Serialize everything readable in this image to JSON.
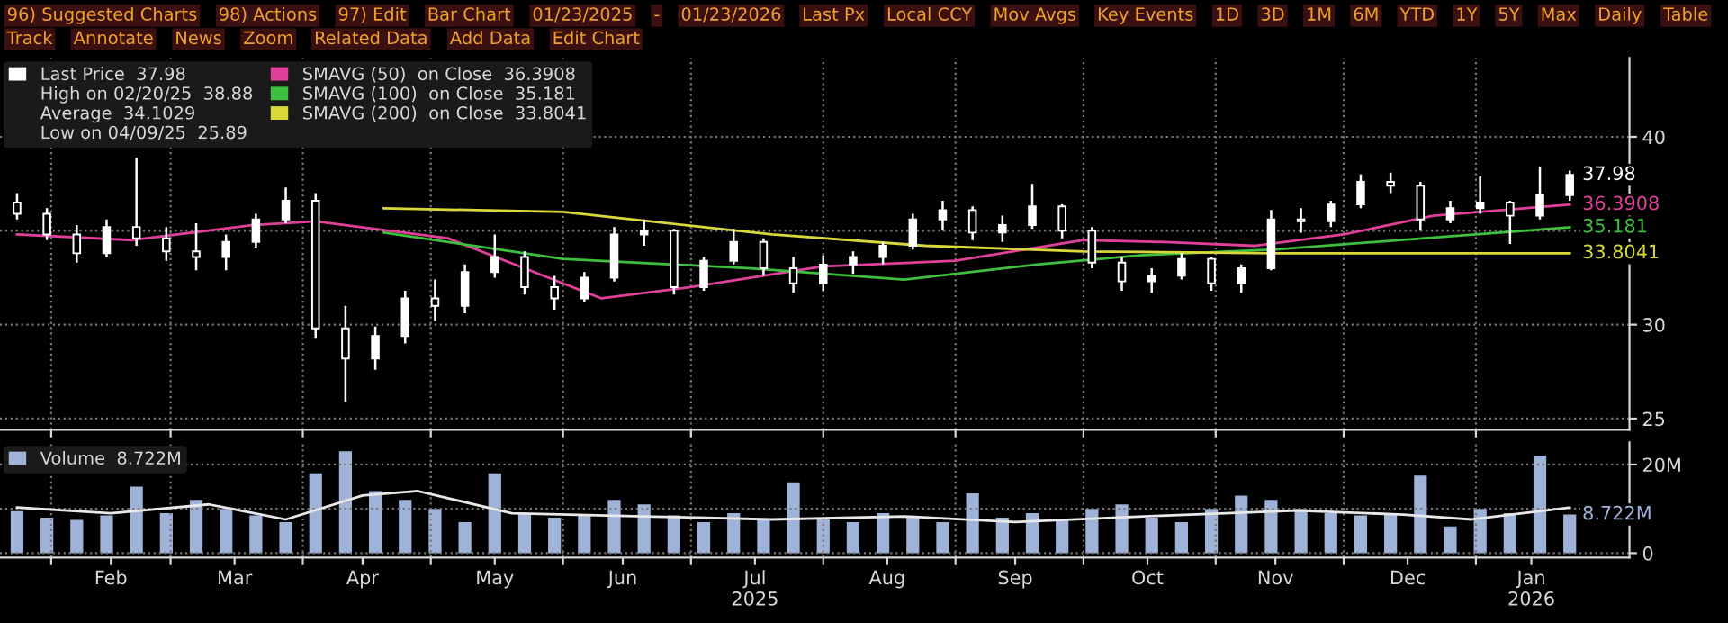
{
  "chart_data": [
    {
      "type": "other",
      "annotations": [
        "96) Suggested Charts",
        "98) Actions",
        "97) Edit",
        "Bar Chart",
        "01/23/2025",
        "-",
        "01/23/2026",
        "Last Px",
        "Local CCY",
        "Mov Avgs",
        "Key Events",
        "1D",
        "3D",
        "1M",
        "6M",
        "YTD",
        "1Y",
        "5Y",
        "Max",
        "Daily",
        "Table",
        "Track",
        "Annotate",
        "News",
        "Zoom",
        "Related Data",
        "Add Data",
        "Edit Chart"
      ]
    },
    {
      "type": "candlestick",
      "x": [
        "2025-01-24",
        "2025-01-31",
        "2025-02-07",
        "2025-02-14",
        "2025-02-21",
        "2025-02-28",
        "2025-03-07",
        "2025-03-14",
        "2025-03-21",
        "2025-03-28",
        "2025-04-04",
        "2025-04-11",
        "2025-04-18",
        "2025-04-25",
        "2025-05-02",
        "2025-05-09",
        "2025-05-16",
        "2025-05-23",
        "2025-05-30",
        "2025-06-06",
        "2025-06-13",
        "2025-06-20",
        "2025-06-27",
        "2025-07-04",
        "2025-07-11",
        "2025-07-18",
        "2025-07-25",
        "2025-08-01",
        "2025-08-08",
        "2025-08-15",
        "2025-08-22",
        "2025-08-29",
        "2025-09-05",
        "2025-09-12",
        "2025-09-19",
        "2025-09-26",
        "2025-10-03",
        "2025-10-10",
        "2025-10-17",
        "2025-10-24",
        "2025-10-31",
        "2025-11-07",
        "2025-11-14",
        "2025-11-21",
        "2025-11-28",
        "2025-12-05",
        "2025-12-12",
        "2025-12-19",
        "2025-12-26",
        "2026-01-02",
        "2026-01-09",
        "2026-01-16",
        "2026-01-23"
      ],
      "series": [
        {
          "type": "candlestick",
          "name": "Last Price  37.98",
          "color": "#ffffff",
          "ohlc": [
            [
              36.5,
              37.0,
              35.6,
              35.9
            ],
            [
              35.9,
              36.2,
              34.5,
              34.8
            ],
            [
              34.8,
              35.3,
              33.3,
              33.8
            ],
            [
              33.8,
              35.6,
              33.6,
              35.2
            ],
            [
              35.2,
              38.88,
              34.2,
              34.6
            ],
            [
              34.6,
              35.2,
              33.4,
              33.9
            ],
            [
              33.9,
              35.4,
              32.9,
              33.6
            ],
            [
              33.6,
              34.8,
              32.9,
              34.4
            ],
            [
              34.4,
              35.9,
              34.1,
              35.6
            ],
            [
              35.6,
              37.3,
              35.4,
              36.6
            ],
            [
              36.6,
              37.0,
              29.3,
              29.8
            ],
            [
              29.8,
              31.0,
              25.89,
              28.2
            ],
            [
              28.2,
              29.9,
              27.6,
              29.4
            ],
            [
              29.4,
              31.8,
              29.0,
              31.4
            ],
            [
              31.4,
              32.4,
              30.2,
              31.0
            ],
            [
              31.0,
              33.2,
              30.6,
              32.8
            ],
            [
              32.8,
              34.8,
              32.5,
              33.6
            ],
            [
              33.6,
              33.9,
              31.6,
              32.0
            ],
            [
              32.0,
              32.6,
              30.8,
              31.4
            ],
            [
              31.4,
              32.8,
              31.2,
              32.5
            ],
            [
              32.5,
              35.2,
              32.3,
              34.8
            ],
            [
              34.8,
              35.6,
              34.2,
              35.0
            ],
            [
              35.0,
              35.1,
              31.6,
              32.0
            ],
            [
              32.0,
              33.6,
              31.8,
              33.4
            ],
            [
              33.4,
              35.1,
              33.2,
              34.4
            ],
            [
              34.4,
              34.6,
              32.6,
              33.0
            ],
            [
              33.0,
              33.6,
              31.7,
              32.2
            ],
            [
              32.2,
              33.7,
              31.8,
              33.2
            ],
            [
              33.2,
              33.9,
              32.7,
              33.6
            ],
            [
              33.6,
              34.4,
              33.2,
              34.2
            ],
            [
              34.2,
              35.9,
              34.0,
              35.6
            ],
            [
              35.6,
              36.6,
              35.0,
              36.1
            ],
            [
              36.1,
              36.3,
              34.5,
              34.9
            ],
            [
              34.9,
              35.8,
              34.4,
              35.3
            ],
            [
              35.3,
              37.5,
              35.1,
              36.3
            ],
            [
              36.3,
              36.4,
              34.6,
              35.0
            ],
            [
              35.0,
              35.2,
              33.0,
              33.3
            ],
            [
              33.3,
              33.6,
              31.8,
              32.3
            ],
            [
              32.3,
              33.0,
              31.7,
              32.6
            ],
            [
              32.6,
              33.8,
              32.4,
              33.5
            ],
            [
              33.5,
              33.6,
              31.8,
              32.2
            ],
            [
              32.2,
              33.2,
              31.7,
              33.0
            ],
            [
              33.0,
              36.1,
              32.9,
              35.6
            ],
            [
              35.6,
              36.2,
              34.9,
              35.5
            ],
            [
              35.5,
              36.6,
              35.2,
              36.4
            ],
            [
              36.4,
              38.0,
              36.2,
              37.6
            ],
            [
              37.6,
              38.1,
              37.0,
              37.4
            ],
            [
              37.4,
              37.6,
              35.0,
              35.6
            ],
            [
              35.6,
              36.6,
              35.4,
              36.2
            ],
            [
              36.2,
              37.9,
              35.9,
              36.5
            ],
            [
              36.5,
              36.6,
              34.3,
              35.8
            ],
            [
              35.8,
              38.4,
              35.6,
              36.9
            ],
            [
              36.9,
              38.2,
              36.6,
              37.98
            ]
          ]
        },
        {
          "type": "line",
          "name": "SMAVG (50)  on Close  36.3908",
          "color": "#e0409a",
          "x": [
            "2025-01-24",
            "2025-02-20",
            "2025-03-20",
            "2025-04-04",
            "2025-05-05",
            "2025-06-10",
            "2025-07-01",
            "2025-08-01",
            "2025-09-01",
            "2025-10-01",
            "2025-10-20",
            "2025-11-10",
            "2025-12-01",
            "2025-12-22",
            "2026-01-23"
          ],
          "values": [
            34.8,
            34.5,
            35.3,
            35.5,
            34.6,
            31.4,
            32.0,
            33.1,
            33.4,
            34.5,
            34.4,
            34.2,
            34.8,
            35.8,
            36.3908
          ]
        },
        {
          "type": "line",
          "name": "SMAVG (100)  on Close  35.181",
          "color": "#3fbf3f",
          "x": [
            "2025-04-20",
            "2025-06-01",
            "2025-07-15",
            "2025-08-20",
            "2025-09-20",
            "2025-10-15",
            "2025-11-15",
            "2025-12-20",
            "2026-01-23"
          ],
          "values": [
            34.9,
            33.5,
            33.0,
            32.4,
            33.2,
            33.7,
            34.0,
            34.6,
            35.181
          ]
        },
        {
          "type": "line",
          "name": "SMAVG (200)  on Close  33.8041",
          "color": "#d8d83a",
          "x": [
            "2025-04-20",
            "2025-06-01",
            "2025-07-20",
            "2025-08-25",
            "2025-10-01",
            "2025-11-15",
            "2026-01-23"
          ],
          "values": [
            36.2,
            36.0,
            34.8,
            34.2,
            33.9,
            33.8,
            33.8041
          ]
        }
      ],
      "annotations": [
        "High on 02/20/25  38.88",
        "Average  34.1029",
        "Low on 04/09/25  25.89",
        {
          "text": "37.98",
          "x": "2026-01-23",
          "y": 37.98
        },
        {
          "text": "36.3908",
          "x": "2026-01-23",
          "y": 36.3908
        },
        {
          "text": "35.181",
          "x": "2026-01-23",
          "y": 35.181
        },
        {
          "text": "33.8041",
          "x": "2026-01-23",
          "y": 33.8041
        }
      ],
      "xlim": [
        "2025-01-20",
        "2026-02-06"
      ],
      "xticks": [
        {
          "value": "2025-02-01",
          "label": null
        },
        {
          "value": "2025-03-01",
          "label": null
        },
        {
          "value": "2025-04-01",
          "label": null
        },
        {
          "value": "2025-05-01",
          "label": null
        },
        {
          "value": "2025-06-01",
          "label": null
        },
        {
          "value": "2025-07-01",
          "label": null
        },
        {
          "value": "2025-08-01",
          "label": null
        },
        {
          "value": "2025-09-01",
          "label": null
        },
        {
          "value": "2025-10-01",
          "label": null
        },
        {
          "value": "2025-11-01",
          "label": null
        },
        {
          "value": "2025-12-01",
          "label": null
        },
        {
          "value": "2026-01-01",
          "label": null
        }
      ],
      "ylim": [
        24.4,
        44.2
      ],
      "yticks": [
        25,
        30,
        {
          "value": 35,
          "label": null
        },
        40
      ],
      "grid": true,
      "legend": "top left",
      "tick_labels": "y"
    },
    {
      "type": "bar",
      "x": [
        "2025-01-24",
        "2025-01-31",
        "2025-02-07",
        "2025-02-14",
        "2025-02-21",
        "2025-02-28",
        "2025-03-07",
        "2025-03-14",
        "2025-03-21",
        "2025-03-28",
        "2025-04-04",
        "2025-04-11",
        "2025-04-18",
        "2025-04-25",
        "2025-05-02",
        "2025-05-09",
        "2025-05-16",
        "2025-05-23",
        "2025-05-30",
        "2025-06-06",
        "2025-06-13",
        "2025-06-20",
        "2025-06-27",
        "2025-07-04",
        "2025-07-11",
        "2025-07-18",
        "2025-07-25",
        "2025-08-01",
        "2025-08-08",
        "2025-08-15",
        "2025-08-22",
        "2025-08-29",
        "2025-09-05",
        "2025-09-12",
        "2025-09-19",
        "2025-09-26",
        "2025-10-03",
        "2025-10-10",
        "2025-10-17",
        "2025-10-24",
        "2025-10-31",
        "2025-11-07",
        "2025-11-14",
        "2025-11-21",
        "2025-11-28",
        "2025-12-05",
        "2025-12-12",
        "2025-12-19",
        "2025-12-26",
        "2026-01-02",
        "2026-01-09",
        "2026-01-16",
        "2026-01-23"
      ],
      "series": [
        {
          "type": "bar",
          "name": "Volume  8.722M",
          "color": "#9fb2d8",
          "values": [
            9.5,
            8.0,
            7.5,
            8.5,
            15,
            9.0,
            12,
            10,
            8.5,
            7,
            18,
            23,
            14,
            12,
            10,
            7,
            18,
            9,
            8,
            8.5,
            12,
            11,
            8.5,
            7,
            9,
            7.5,
            16,
            8,
            7,
            9,
            8,
            7,
            13.5,
            8,
            9,
            7.5,
            10,
            11,
            8,
            7,
            10,
            13,
            12,
            10,
            9,
            8.5,
            9,
            17.5,
            6,
            10,
            9,
            22,
            8.722
          ]
        },
        {
          "type": "line",
          "color": "#e8e8e8",
          "x": [
            "2025-01-24",
            "2025-02-15",
            "2025-03-10",
            "2025-03-28",
            "2025-04-15",
            "2025-04-28",
            "2025-05-20",
            "2025-06-20",
            "2025-07-20",
            "2025-08-20",
            "2025-09-15",
            "2025-10-15",
            "2025-11-20",
            "2025-12-15",
            "2025-12-31",
            "2026-01-23"
          ],
          "values": [
            10.3,
            9.0,
            11.0,
            7.6,
            13.0,
            14.0,
            9.0,
            8.3,
            7.6,
            8.3,
            7.0,
            8.3,
            9.6,
            8.7,
            7.6,
            10.3
          ]
        }
      ],
      "annotations": [
        {
          "text": "8.722M",
          "x": "2026-01-23",
          "y": 8.722
        }
      ],
      "xlim": [
        "2025-01-20",
        "2026-02-06"
      ],
      "xticks": [
        {
          "value": "2025-02-01",
          "label": null
        },
        {
          "value": "2025-02-15",
          "label": "Feb"
        },
        {
          "value": "2025-03-01",
          "label": null
        },
        {
          "value": "2025-03-16",
          "label": "Mar"
        },
        {
          "value": "2025-04-01",
          "label": null
        },
        {
          "value": "2025-04-15",
          "label": "Apr"
        },
        {
          "value": "2025-05-01",
          "label": null
        },
        {
          "value": "2025-05-16",
          "label": "May"
        },
        {
          "value": "2025-06-01",
          "label": null
        },
        {
          "value": "2025-06-15",
          "label": "Jun"
        },
        {
          "value": "2025-07-01",
          "label": null
        },
        {
          "value": "2025-07-16",
          "label": "Jul\n2025"
        },
        {
          "value": "2025-08-01",
          "label": null
        },
        {
          "value": "2025-08-16",
          "label": "Aug"
        },
        {
          "value": "2025-09-01",
          "label": null
        },
        {
          "value": "2025-09-15",
          "label": "Sep"
        },
        {
          "value": "2025-10-01",
          "label": null
        },
        {
          "value": "2025-10-16",
          "label": "Oct"
        },
        {
          "value": "2025-11-01",
          "label": null
        },
        {
          "value": "2025-11-15",
          "label": "Nov"
        },
        {
          "value": "2025-12-01",
          "label": null
        },
        {
          "value": "2025-12-16",
          "label": "Dec"
        },
        {
          "value": "2026-01-01",
          "label": null
        },
        {
          "value": "2026-01-14",
          "label": "Jan\n2026"
        }
      ],
      "ylim": [
        -1,
        25
      ],
      "yticks": [
        0,
        {
          "value": 10,
          "label": null
        },
        {
          "value": 20,
          "label": "20M"
        }
      ],
      "grid": true,
      "legend": "top left"
    }
  ]
}
